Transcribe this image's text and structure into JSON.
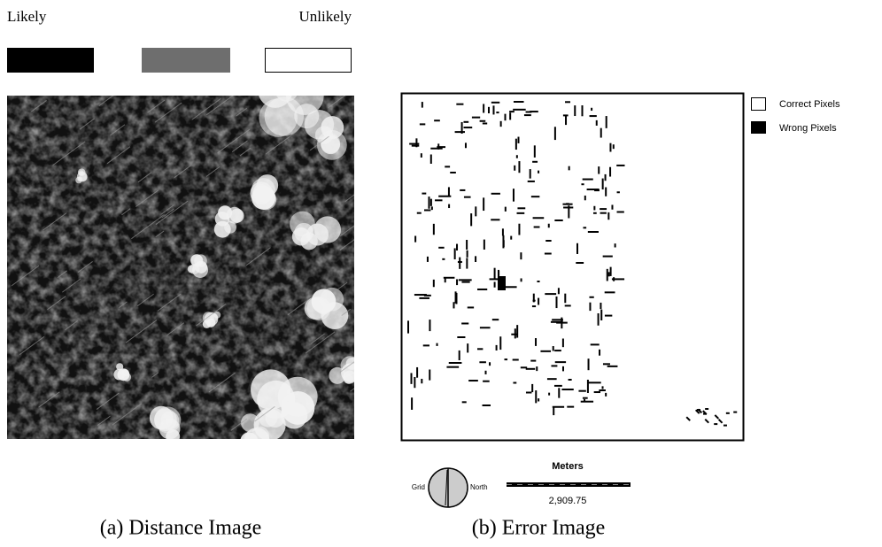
{
  "legend_a": {
    "left": "Likely",
    "right": "Unlikely"
  },
  "legend_b": {
    "items": [
      "Correct Pixels",
      "Wrong Pixels"
    ]
  },
  "compass": {
    "left": "Grid",
    "right": "North"
  },
  "scale_bar": {
    "title": "Meters",
    "value": "2,909.75"
  },
  "captions": [
    "(a) Distance Image",
    "(b) Error Image"
  ]
}
